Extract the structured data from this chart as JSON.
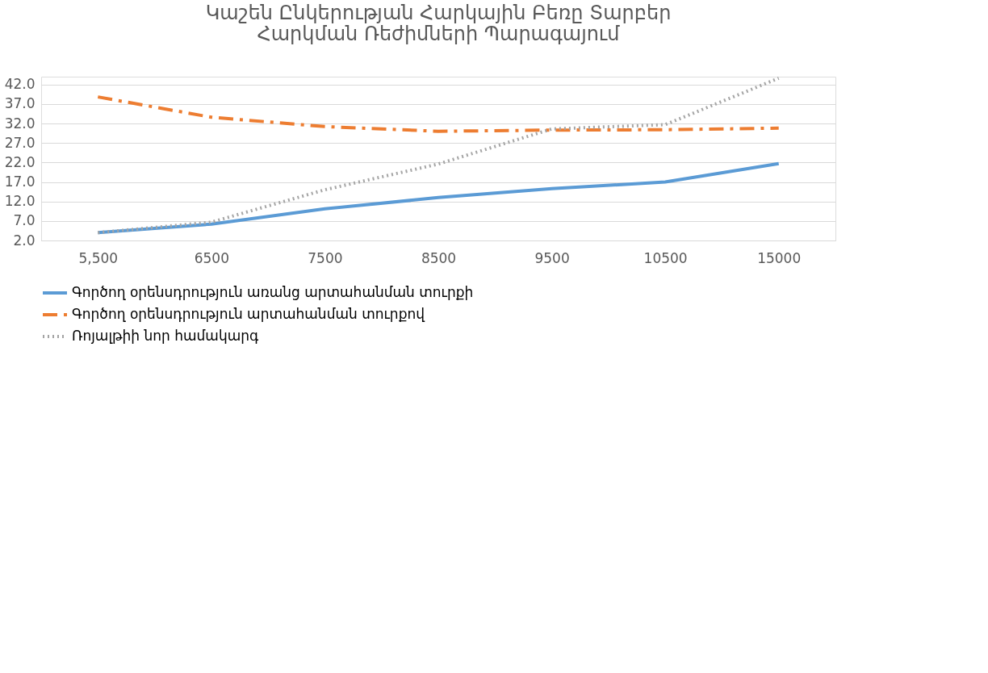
{
  "chart_data": {
    "type": "line",
    "title": "Կաշեն Ընկերության Հարկային Բեռը Տարբեր Հարկման Ռեժիմների Պարագայում",
    "categories": [
      "5,500",
      "6500",
      "7500",
      "8500",
      "9500",
      "10500",
      "15000"
    ],
    "series": [
      {
        "name": "Գործող օրենսդրություն առանց արտահանման տուրքի",
        "color": "#5b9bd5",
        "line_style": "solid",
        "values": [
          4.0,
          6.2,
          10.1,
          13.0,
          15.3,
          17.0,
          21.7
        ]
      },
      {
        "name": "Գործող օրենսդրություն արտահանման տուրքով",
        "color": "#ed7d31",
        "line_style": "dashed",
        "values": [
          38.8,
          33.6,
          31.2,
          30.0,
          30.3,
          30.4,
          30.8
        ]
      },
      {
        "name": "Ռոյալթիի նոր համակարգ",
        "color": "#a5a5a5",
        "line_style": "dotted",
        "values": [
          4.0,
          6.7,
          15.0,
          21.6,
          30.6,
          31.7,
          43.6
        ]
      }
    ],
    "ylim": [
      2.0,
      44.0
    ],
    "yticks": [
      {
        "value": 2,
        "label": "2.0"
      },
      {
        "value": 7,
        "label": "7.0"
      },
      {
        "value": 12,
        "label": "12.0"
      },
      {
        "value": 17,
        "label": "17.0"
      },
      {
        "value": 22,
        "label": "22.0"
      },
      {
        "value": 27,
        "label": "27.0"
      },
      {
        "value": 32,
        "label": "32.0"
      },
      {
        "value": 37,
        "label": "37.0"
      },
      {
        "value": 42,
        "label": "42.0"
      }
    ],
    "grid": "y",
    "legend": "bottom",
    "marker": "none"
  }
}
